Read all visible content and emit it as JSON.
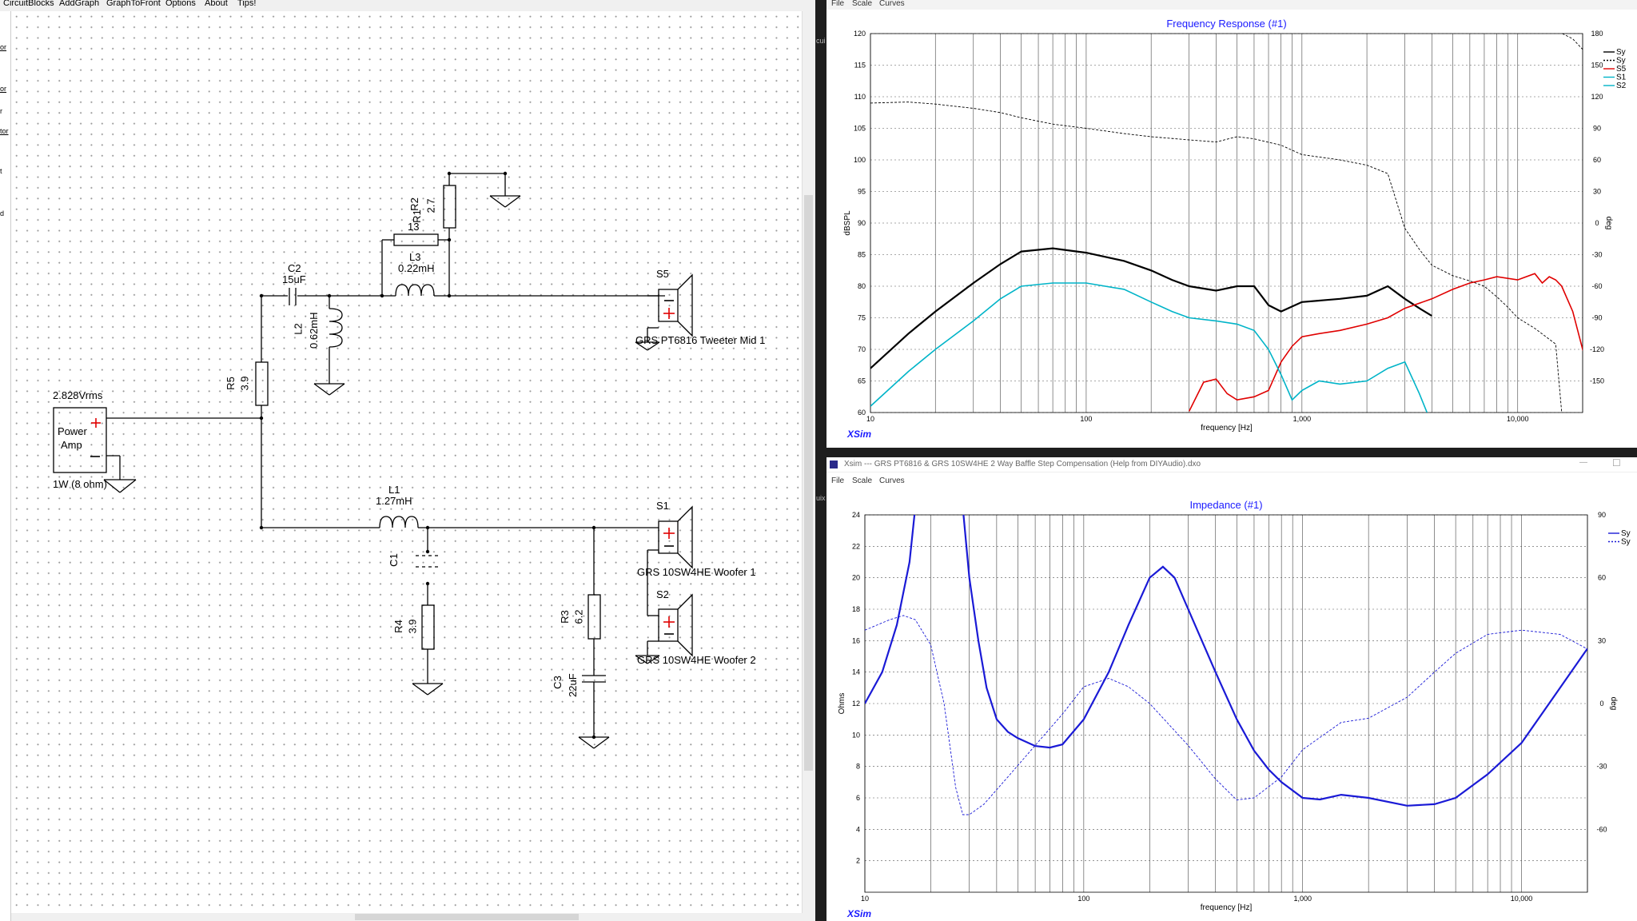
{
  "schematic_window": {
    "menu": [
      "CircuitBlocks",
      "AddGraph",
      "GraphToFront",
      "Options",
      "About",
      "Tips!"
    ],
    "side_labels": [
      "or",
      "or",
      "r",
      "tor",
      "t",
      "d"
    ],
    "components": {
      "source_level": "2.828Vrms",
      "amp_label_1": "Power",
      "amp_label_2": "Amp",
      "amp_power": "1W (8 ohm)",
      "c2_name": "C2",
      "c2_value": "15uF",
      "r1_name": "R1",
      "r1_value": "13",
      "r2_name": "R2",
      "r2_value": "2.7",
      "l3_name": "L3",
      "l3_value": "0.22mH",
      "l2_name": "L2",
      "l2_value": "0.62mH",
      "r5_name": "R5",
      "r5_value": "3.9",
      "s5_name": "S5",
      "s5_label": "GRS PT6816 Tweeter Mid 1",
      "l1_name": "L1",
      "l1_value": "1.27mH",
      "c1_name": "C1",
      "r4_name": "R4",
      "r4_value": "3.9",
      "r3_name": "R3",
      "r3_value": "6.2",
      "c3_name": "C3",
      "c3_value": "22uF",
      "s1_name": "S1",
      "s1_label": "GRS 10SW4HE Woofer 1",
      "s2_name": "S2",
      "s2_label": "GRS 10SW4HE Woofer 2"
    }
  },
  "freq_window": {
    "menu": [
      "File",
      "Scale",
      "Curves"
    ],
    "logo": "XSim",
    "side_text": "cui"
  },
  "imp_window": {
    "title": "Xsim --- GRS PT6816 & GRS 10SW4HE 2 Way Baffle Step Compensation (Help from DIYAudio).dxo",
    "menu": [
      "File",
      "Scale",
      "Curves"
    ],
    "logo": "XSim",
    "side_text": "uix"
  },
  "chart_data": [
    {
      "type": "line",
      "title": "Frequency Response (#1)",
      "xlabel": "frequency [Hz]",
      "ylabel": "dBSPL",
      "y2label": "deg",
      "x_scale": "log",
      "xlim": [
        10,
        20000
      ],
      "ylim": [
        60,
        120
      ],
      "y2lim": [
        -180,
        180
      ],
      "x_ticks": [
        "10",
        "100",
        "1,000",
        "10,000"
      ],
      "y_ticks": [
        "60",
        "65",
        "70",
        "75",
        "80",
        "85",
        "90",
        "95",
        "100",
        "105",
        "110",
        "115",
        "120"
      ],
      "y2_ticks": [
        "-150",
        "-120",
        "-90",
        "-60",
        "-30",
        "0",
        "30",
        "60",
        "90",
        "120",
        "150",
        "180"
      ],
      "legend": [
        "Sy",
        "Sy",
        "S5",
        "S1",
        "S2"
      ],
      "legend_position": "top-right",
      "grid": true,
      "series": [
        {
          "name": "Sy",
          "color": "#000000",
          "style": "solid-bold",
          "points": [
            [
              10,
              67
            ],
            [
              15,
              72.5
            ],
            [
              20,
              76
            ],
            [
              30,
              80.5
            ],
            [
              40,
              83.5
            ],
            [
              50,
              85.5
            ],
            [
              70,
              86
            ],
            [
              100,
              85.3
            ],
            [
              150,
              84
            ],
            [
              200,
              82.5
            ],
            [
              250,
              81
            ],
            [
              300,
              80
            ],
            [
              400,
              79.3
            ],
            [
              500,
              80
            ],
            [
              600,
              80
            ],
            [
              700,
              77
            ],
            [
              800,
              76
            ],
            [
              1000,
              77.5
            ],
            [
              1500,
              78
            ],
            [
              2000,
              78.5
            ],
            [
              2500,
              80
            ],
            [
              3000,
              78
            ],
            [
              3500,
              76.5
            ],
            [
              4000,
              75.3
            ]
          ]
        },
        {
          "name": "Sy",
          "color": "#000000",
          "style": "dashed-thin",
          "points": [
            [
              10,
              114
            ],
            [
              15,
              115
            ],
            [
              20,
              113
            ],
            [
              30,
              109
            ],
            [
              40,
              105
            ],
            [
              50,
              100
            ],
            [
              70,
              94
            ],
            [
              100,
              90
            ],
            [
              150,
              85
            ],
            [
              200,
              82
            ],
            [
              300,
              79
            ],
            [
              400,
              77
            ],
            [
              500,
              82
            ],
            [
              600,
              80
            ],
            [
              800,
              74
            ],
            [
              1000,
              65
            ],
            [
              1500,
              60
            ],
            [
              2000,
              55
            ],
            [
              2500,
              47
            ],
            [
              3000,
              -5
            ],
            [
              3500,
              -25
            ],
            [
              4000,
              -40
            ],
            [
              5000,
              -50
            ],
            [
              6000,
              -55
            ],
            [
              7000,
              -60
            ],
            [
              8000,
              -70
            ],
            [
              9000,
              -80
            ],
            [
              10000,
              -90
            ],
            [
              12000,
              -100
            ],
            [
              15000,
              -115
            ],
            [
              16000,
              -180
            ],
            [
              16100,
              180
            ],
            [
              18000,
              175
            ],
            [
              20000,
              165
            ]
          ]
        },
        {
          "name": "S5",
          "color": "#e00000",
          "style": "solid",
          "points": [
            [
              300,
              60.2
            ],
            [
              350,
              64.8
            ],
            [
              400,
              65.3
            ],
            [
              450,
              63
            ],
            [
              500,
              62
            ],
            [
              600,
              62.5
            ],
            [
              700,
              63.5
            ],
            [
              800,
              68
            ],
            [
              900,
              70.5
            ],
            [
              1000,
              72
            ],
            [
              1200,
              72.5
            ],
            [
              1500,
              73
            ],
            [
              2000,
              74
            ],
            [
              2500,
              75
            ],
            [
              3000,
              76.5
            ],
            [
              4000,
              78
            ],
            [
              5000,
              79.5
            ],
            [
              6000,
              80.5
            ],
            [
              7000,
              81
            ],
            [
              8000,
              81.5
            ],
            [
              10000,
              81
            ],
            [
              12000,
              82
            ],
            [
              13000,
              80.5
            ],
            [
              14000,
              81.5
            ],
            [
              15000,
              81
            ],
            [
              16000,
              80
            ],
            [
              18000,
              76
            ],
            [
              20000,
              70
            ],
            [
              22000,
              66
            ]
          ]
        },
        {
          "name": "S1",
          "color": "#00b4c8",
          "style": "solid",
          "points": [
            [
              10,
              61
            ],
            [
              15,
              66.5
            ],
            [
              20,
              70
            ],
            [
              30,
              74.5
            ],
            [
              40,
              78
            ],
            [
              50,
              80
            ],
            [
              70,
              80.5
            ],
            [
              100,
              80.5
            ],
            [
              150,
              79.5
            ],
            [
              200,
              77.5
            ],
            [
              250,
              76
            ],
            [
              300,
              75
            ],
            [
              400,
              74.5
            ],
            [
              500,
              74
            ],
            [
              600,
              73
            ],
            [
              700,
              70
            ],
            [
              800,
              66
            ],
            [
              900,
              62
            ],
            [
              1000,
              63.5
            ],
            [
              1200,
              65
            ],
            [
              1500,
              64.5
            ],
            [
              2000,
              65
            ],
            [
              2500,
              67
            ],
            [
              3000,
              68
            ],
            [
              3500,
              63
            ],
            [
              3800,
              60
            ]
          ]
        }
      ]
    },
    {
      "type": "line",
      "title": "Impedance (#1)",
      "xlabel": "frequency [Hz]",
      "ylabel": "Ohms",
      "y2label": "deg",
      "x_scale": "log",
      "xlim": [
        10,
        20000
      ],
      "ylim": [
        0,
        24
      ],
      "y2lim": [
        -90,
        90
      ],
      "x_ticks": [
        "10",
        "100",
        "1,000",
        "10,000"
      ],
      "y_ticks": [
        "2",
        "4",
        "6",
        "8",
        "10",
        "12",
        "14",
        "16",
        "18",
        "20",
        "22",
        "24"
      ],
      "y2_ticks": [
        "-60",
        "-30",
        "0",
        "30",
        "60",
        "90"
      ],
      "legend": [
        "Sy",
        "Sy"
      ],
      "legend_position": "top-right",
      "grid": true,
      "series": [
        {
          "name": "Sy",
          "color": "#1a1ad6",
          "style": "solid-bold",
          "points": [
            [
              10,
              12
            ],
            [
              12,
              14
            ],
            [
              14,
              17
            ],
            [
              16,
              21
            ],
            [
              17,
              24.5
            ],
            [
              28,
              24.5
            ],
            [
              30,
              20
            ],
            [
              33,
              16
            ],
            [
              36,
              13
            ],
            [
              40,
              11
            ],
            [
              45,
              10.2
            ],
            [
              50,
              9.8
            ],
            [
              60,
              9.3
            ],
            [
              70,
              9.2
            ],
            [
              80,
              9.4
            ],
            [
              100,
              11
            ],
            [
              130,
              14
            ],
            [
              160,
              17
            ],
            [
              200,
              20
            ],
            [
              230,
              20.7
            ],
            [
              260,
              20
            ],
            [
              300,
              18
            ],
            [
              400,
              14
            ],
            [
              500,
              11
            ],
            [
              600,
              9
            ],
            [
              700,
              7.8
            ],
            [
              800,
              7
            ],
            [
              1000,
              6
            ],
            [
              1200,
              5.9
            ],
            [
              1500,
              6.2
            ],
            [
              2000,
              6
            ],
            [
              3000,
              5.5
            ],
            [
              4000,
              5.6
            ],
            [
              5000,
              6
            ],
            [
              7000,
              7.5
            ],
            [
              10000,
              9.5
            ],
            [
              15000,
              13
            ],
            [
              20000,
              15.5
            ]
          ]
        },
        {
          "name": "Sy",
          "color": "#1a1ad6",
          "style": "dashed-thin",
          "points": [
            [
              10,
              35
            ],
            [
              13,
              40
            ],
            [
              15,
              42
            ],
            [
              17,
              40
            ],
            [
              20,
              28
            ],
            [
              23,
              0
            ],
            [
              26,
              -40
            ],
            [
              28,
              -53
            ],
            [
              30,
              -53
            ],
            [
              35,
              -48
            ],
            [
              45,
              -35
            ],
            [
              60,
              -20
            ],
            [
              80,
              -5
            ],
            [
              100,
              8
            ],
            [
              130,
              12
            ],
            [
              160,
              8
            ],
            [
              200,
              0
            ],
            [
              300,
              -20
            ],
            [
              400,
              -36
            ],
            [
              500,
              -46
            ],
            [
              600,
              -45
            ],
            [
              800,
              -35
            ],
            [
              1000,
              -22
            ],
            [
              1500,
              -9
            ],
            [
              2000,
              -7
            ],
            [
              3000,
              3
            ],
            [
              4000,
              15
            ],
            [
              5000,
              24
            ],
            [
              7000,
              33
            ],
            [
              10000,
              35
            ],
            [
              15000,
              33
            ],
            [
              20000,
              26
            ]
          ]
        }
      ]
    }
  ]
}
